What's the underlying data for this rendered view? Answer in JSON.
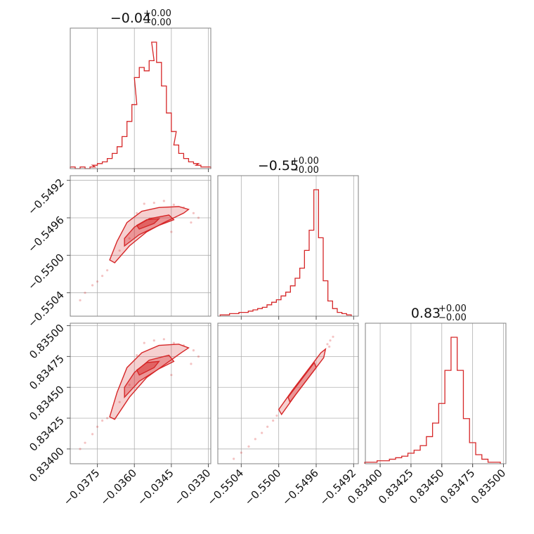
{
  "chart_data": {
    "type": "corner",
    "color": "#d62728",
    "parameters": [
      {
        "title": "−0.04",
        "title_plus": "+0.00",
        "title_minus": "−0.00",
        "range": [
          -0.0386,
          -0.0329
        ],
        "ticks": [
          -0.0375,
          -0.036,
          -0.0345,
          -0.033
        ],
        "tick_labels": [
          "−0.0375",
          "−0.0360",
          "−0.0345",
          "−0.0330"
        ],
        "hist": [
          {
            "x": -0.0385,
            "count": 1
          },
          {
            "x": -0.0383,
            "count": 0
          },
          {
            "x": -0.0381,
            "count": 1
          },
          {
            "x": -0.0379,
            "count": 0
          },
          {
            "x": -0.0377,
            "count": 1
          },
          {
            "x": -0.0376,
            "count": 2
          },
          {
            "x": -0.0374,
            "count": 3
          },
          {
            "x": -0.0372,
            "count": 4
          },
          {
            "x": -0.037,
            "count": 6
          },
          {
            "x": -0.0368,
            "count": 9
          },
          {
            "x": -0.0366,
            "count": 13
          },
          {
            "x": -0.0364,
            "count": 19
          },
          {
            "x": -0.0362,
            "count": 28
          },
          {
            "x": -0.036,
            "count": 38
          },
          {
            "x": -0.0359,
            "count": 54
          },
          {
            "x": -0.0357,
            "count": 60
          },
          {
            "x": -0.0355,
            "count": 58
          },
          {
            "x": -0.0353,
            "count": 64
          },
          {
            "x": -0.0352,
            "count": 75
          },
          {
            "x": -0.035,
            "count": 63
          },
          {
            "x": -0.0348,
            "count": 49
          },
          {
            "x": -0.0346,
            "count": 33
          },
          {
            "x": -0.0344,
            "count": 22
          },
          {
            "x": -0.0343,
            "count": 14
          },
          {
            "x": -0.0341,
            "count": 9
          },
          {
            "x": -0.0339,
            "count": 6
          },
          {
            "x": -0.0337,
            "count": 4
          },
          {
            "x": -0.0335,
            "count": 3
          },
          {
            "x": -0.0334,
            "count": 2
          },
          {
            "x": -0.0332,
            "count": 1
          },
          {
            "x": -0.033,
            "count": 1
          }
        ]
      },
      {
        "title": "−0.55",
        "title_plus": "+0.00",
        "title_minus": "−0.00",
        "range": [
          -0.55065,
          -0.54915
        ],
        "ticks": [
          -0.5504,
          -0.55,
          -0.5496,
          -0.5492
        ],
        "tick_labels": [
          "−0.5504",
          "−0.5500",
          "−0.5496",
          "−0.5492"
        ],
        "hist": [
          {
            "x": -0.5506,
            "count": 1
          },
          {
            "x": -0.55055,
            "count": 1
          },
          {
            "x": -0.5505,
            "count": 2
          },
          {
            "x": -0.55045,
            "count": 2
          },
          {
            "x": -0.5504,
            "count": 3
          },
          {
            "x": -0.55035,
            "count": 3
          },
          {
            "x": -0.5503,
            "count": 4
          },
          {
            "x": -0.55025,
            "count": 5
          },
          {
            "x": -0.5502,
            "count": 6
          },
          {
            "x": -0.55015,
            "count": 7
          },
          {
            "x": -0.5501,
            "count": 9
          },
          {
            "x": -0.55005,
            "count": 11
          },
          {
            "x": -0.55,
            "count": 13
          },
          {
            "x": -0.54995,
            "count": 16
          },
          {
            "x": -0.5499,
            "count": 19
          },
          {
            "x": -0.54985,
            "count": 24
          },
          {
            "x": -0.5498,
            "count": 30
          },
          {
            "x": -0.54975,
            "count": 38
          },
          {
            "x": -0.5497,
            "count": 52
          },
          {
            "x": -0.54965,
            "count": 68
          },
          {
            "x": -0.5496,
            "count": 100
          },
          {
            "x": -0.54955,
            "count": 62
          },
          {
            "x": -0.5495,
            "count": 28
          },
          {
            "x": -0.54945,
            "count": 12
          },
          {
            "x": -0.5494,
            "count": 6
          },
          {
            "x": -0.54935,
            "count": 3
          },
          {
            "x": -0.5493,
            "count": 2
          },
          {
            "x": -0.54925,
            "count": 1
          }
        ]
      },
      {
        "title": "0.83",
        "title_plus": "+0.00",
        "title_minus": "−0.00",
        "range": [
          0.83388,
          0.83502
        ],
        "ticks": [
          0.834,
          0.83425,
          0.8345,
          0.83475,
          0.835
        ],
        "tick_labels": [
          "0.83400",
          "0.83425",
          "0.83450",
          "0.83475",
          "0.83500"
        ],
        "hist": [
          {
            "x": 0.8339,
            "count": 1
          },
          {
            "x": 0.83395,
            "count": 1
          },
          {
            "x": 0.834,
            "count": 2
          },
          {
            "x": 0.83405,
            "count": 2
          },
          {
            "x": 0.8341,
            "count": 3
          },
          {
            "x": 0.83415,
            "count": 4
          },
          {
            "x": 0.8342,
            "count": 5
          },
          {
            "x": 0.83425,
            "count": 7
          },
          {
            "x": 0.8343,
            "count": 9
          },
          {
            "x": 0.83435,
            "count": 12
          },
          {
            "x": 0.8344,
            "count": 18
          },
          {
            "x": 0.83445,
            "count": 27
          },
          {
            "x": 0.8345,
            "count": 40
          },
          {
            "x": 0.83455,
            "count": 62
          },
          {
            "x": 0.8346,
            "count": 84
          },
          {
            "x": 0.83465,
            "count": 62
          },
          {
            "x": 0.8347,
            "count": 30
          },
          {
            "x": 0.83475,
            "count": 14
          },
          {
            "x": 0.8348,
            "count": 6
          },
          {
            "x": 0.83485,
            "count": 3
          },
          {
            "x": 0.8349,
            "count": 1
          },
          {
            "x": 0.83495,
            "count": 1
          }
        ]
      }
    ],
    "pairs": [
      {
        "x_param": 0,
        "y_param": 1,
        "contour_levels": [
          [
            [
              -0.0368,
              -0.55008
            ],
            [
              -0.0362,
              -0.5499
            ],
            [
              -0.0355,
              -0.54975
            ],
            [
              -0.0348,
              -0.54965
            ],
            [
              -0.034,
              -0.54955
            ],
            [
              -0.0338,
              -0.54951
            ],
            [
              -0.0342,
              -0.54948
            ],
            [
              -0.035,
              -0.54949
            ],
            [
              -0.0357,
              -0.54953
            ],
            [
              -0.0363,
              -0.54965
            ],
            [
              -0.0367,
              -0.54985
            ],
            [
              -0.037,
              -0.55005
            ]
          ],
          [
            [
              -0.0364,
              -0.5499
            ],
            [
              -0.0358,
              -0.54978
            ],
            [
              -0.035,
              -0.54968
            ],
            [
              -0.0344,
              -0.54962
            ],
            [
              -0.0346,
              -0.54957
            ],
            [
              -0.0354,
              -0.54961
            ],
            [
              -0.036,
              -0.5497
            ],
            [
              -0.0364,
              -0.54982
            ]
          ],
          [
            [
              -0.0358,
              -0.54972
            ],
            [
              -0.0352,
              -0.54966
            ],
            [
              -0.035,
              -0.54961
            ],
            [
              -0.0355,
              -0.54962
            ],
            [
              -0.0359,
              -0.54968
            ]
          ]
        ],
        "scatter_points": [
          [
            -0.0382,
            -0.55048
          ],
          [
            -0.038,
            -0.5504
          ],
          [
            -0.0377,
            -0.55032
          ],
          [
            -0.0375,
            -0.55028
          ],
          [
            -0.0373,
            -0.55022
          ],
          [
            -0.0371,
            -0.55016
          ],
          [
            -0.0366,
            -0.54995
          ],
          [
            -0.0362,
            -0.54982
          ],
          [
            -0.0359,
            -0.54955
          ],
          [
            -0.0356,
            -0.54945
          ],
          [
            -0.0352,
            -0.54944
          ],
          [
            -0.0348,
            -0.54942
          ],
          [
            -0.0344,
            -0.54946
          ],
          [
            -0.034,
            -0.54949
          ],
          [
            -0.0336,
            -0.54955
          ],
          [
            -0.0334,
            -0.5496
          ],
          [
            -0.0345,
            -0.54975
          ],
          [
            -0.0337,
            -0.54965
          ]
        ]
      },
      {
        "x_param": 0,
        "y_param": 2,
        "contour_levels": [
          [
            [
              -0.0368,
              0.83424
            ],
            [
              -0.0362,
              0.83442
            ],
            [
              -0.0355,
              0.83458
            ],
            [
              -0.0348,
              0.83468
            ],
            [
              -0.0341,
              0.83478
            ],
            [
              -0.0338,
              0.83482
            ],
            [
              -0.0342,
              0.83485
            ],
            [
              -0.035,
              0.83484
            ],
            [
              -0.0357,
              0.83478
            ],
            [
              -0.0363,
              0.83466
            ],
            [
              -0.0367,
              0.83446
            ],
            [
              -0.037,
              0.83426
            ]
          ],
          [
            [
              -0.0364,
              0.83442
            ],
            [
              -0.0358,
              0.83455
            ],
            [
              -0.035,
              0.83465
            ],
            [
              -0.0344,
              0.83471
            ],
            [
              -0.0346,
              0.83476
            ],
            [
              -0.0354,
              0.83472
            ],
            [
              -0.036,
              0.83462
            ],
            [
              -0.0364,
              0.8345
            ]
          ],
          [
            [
              -0.0358,
              0.8346
            ],
            [
              -0.0352,
              0.83466
            ],
            [
              -0.035,
              0.83471
            ],
            [
              -0.0355,
              0.8347
            ],
            [
              -0.0359,
              0.83464
            ]
          ]
        ],
        "scatter_points": [
          [
            -0.0382,
            0.834
          ],
          [
            -0.038,
            0.83405
          ],
          [
            -0.0377,
            0.83412
          ],
          [
            -0.0375,
            0.83418
          ],
          [
            -0.0373,
            0.83423
          ],
          [
            -0.0371,
            0.83425
          ],
          [
            -0.0366,
            0.83438
          ],
          [
            -0.0362,
            0.83452
          ],
          [
            -0.0359,
            0.83476
          ],
          [
            -0.0356,
            0.83486
          ],
          [
            -0.0352,
            0.83488
          ],
          [
            -0.0348,
            0.83489
          ],
          [
            -0.0344,
            0.83486
          ],
          [
            -0.034,
            0.83484
          ],
          [
            -0.0336,
            0.8348
          ],
          [
            -0.0334,
            0.83475
          ],
          [
            -0.0345,
            0.8346
          ],
          [
            -0.0337,
            0.83469
          ]
        ]
      },
      {
        "x_param": 1,
        "y_param": 2,
        "contour_levels": [
          [
            [
              -0.55,
              0.83432
            ],
            [
              -0.54985,
              0.83448
            ],
            [
              -0.5497,
              0.83463
            ],
            [
              -0.54955,
              0.83478
            ],
            [
              -0.5495,
              0.83481
            ],
            [
              -0.54952,
              0.83474
            ],
            [
              -0.54967,
              0.83459
            ],
            [
              -0.54982,
              0.83444
            ],
            [
              -0.54997,
              0.83428
            ]
          ],
          [
            [
              -0.5499,
              0.83442
            ],
            [
              -0.54975,
              0.83457
            ],
            [
              -0.54962,
              0.8347
            ],
            [
              -0.5496,
              0.83466
            ],
            [
              -0.54973,
              0.83453
            ],
            [
              -0.54988,
              0.83438
            ]
          ]
        ],
        "scatter_points": [
          [
            -0.55048,
            0.83392
          ],
          [
            -0.5504,
            0.83397
          ],
          [
            -0.55032,
            0.83402
          ],
          [
            -0.55025,
            0.83408
          ],
          [
            -0.55018,
            0.83413
          ],
          [
            -0.55012,
            0.83418
          ],
          [
            -0.55006,
            0.83423
          ],
          [
            -0.55002,
            0.83427
          ],
          [
            -0.54948,
            0.83485
          ],
          [
            -0.54945,
            0.83488
          ],
          [
            -0.54942,
            0.83491
          ],
          [
            -0.54946,
            0.83483
          ]
        ]
      }
    ]
  }
}
